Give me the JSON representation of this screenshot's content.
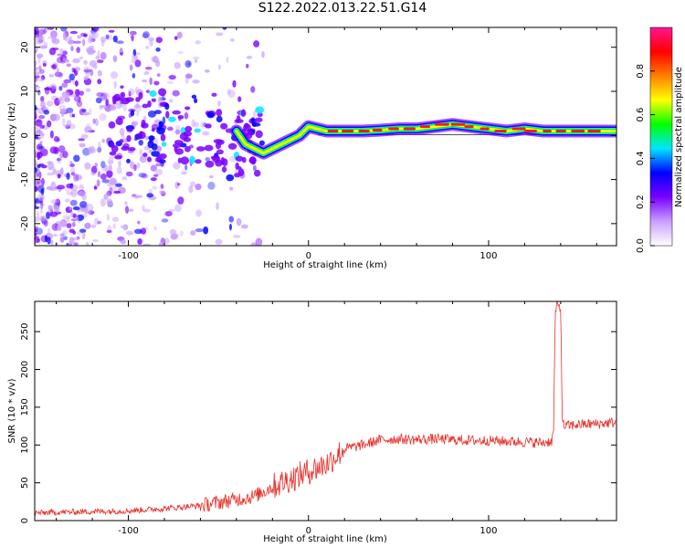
{
  "title": "S122.2022.013.22.51.G14",
  "chart_data": [
    {
      "type": "heatmap",
      "xlabel": "Height of straight line (km)",
      "ylabel": "Frequency (Hz)",
      "xlim": [
        -152,
        171
      ],
      "ylim": [
        -25,
        24.5
      ],
      "xticks": [
        -100,
        0,
        100
      ],
      "xtick_labels": [
        "-100",
        "0",
        "100"
      ],
      "yticks": [
        -20,
        -10,
        0,
        10,
        20
      ],
      "ytick_labels": [
        "-20",
        "-10",
        "0",
        "10",
        "20"
      ],
      "grid": false,
      "ridge": {
        "x": [
          -40,
          -35,
          -30,
          -25,
          -20,
          -15,
          -10,
          -5,
          0,
          5,
          10,
          20,
          30,
          40,
          50,
          60,
          70,
          80,
          90,
          100,
          110,
          120,
          130,
          140,
          150,
          160,
          171
        ],
        "y": [
          1,
          -2,
          -3,
          -4,
          -3,
          -2,
          -1,
          0,
          2,
          1.5,
          1,
          1,
          1,
          1.2,
          1.5,
          1.5,
          2,
          2.5,
          2,
          1.5,
          1,
          1.5,
          1,
          1,
          1,
          1,
          1
        ]
      },
      "colorbar": {
        "label": "Normalized spectral amplitude",
        "range": [
          0,
          1
        ],
        "ticks": [
          0.0,
          0.2,
          0.4,
          0.6,
          0.8
        ],
        "tick_labels": [
          "0.0",
          "0.2",
          "0.4",
          "0.6",
          "0.8"
        ],
        "colors": [
          "#ffffff",
          "#c9a0ff",
          "#7a00ff",
          "#0000ff",
          "#00e5ff",
          "#00ff00",
          "#ffff00",
          "#ff8000",
          "#ff0000",
          "#ff1493"
        ]
      }
    },
    {
      "type": "line",
      "xlabel": "Height of straight line (km)",
      "ylabel": "SNR (10 * v/v)",
      "xlim": [
        -152,
        171
      ],
      "ylim": [
        0,
        290
      ],
      "xticks": [
        -100,
        0,
        100
      ],
      "xtick_labels": [
        "-100",
        "0",
        "100"
      ],
      "yticks": [
        0,
        50,
        100,
        150,
        200,
        250
      ],
      "ytick_labels": [
        "0",
        "50",
        "100",
        "150",
        "200",
        "250"
      ],
      "grid": false,
      "series": [
        {
          "color": "#e8302a",
          "x": [
            -152,
            -140,
            -120,
            -100,
            -80,
            -60,
            -50,
            -40,
            -30,
            -20,
            -10,
            0,
            10,
            20,
            30,
            40,
            50,
            60,
            70,
            80,
            90,
            100,
            110,
            120,
            130,
            135,
            136,
            137,
            138,
            139,
            140,
            141,
            142,
            150,
            160,
            171
          ],
          "y": [
            10,
            11,
            12,
            13,
            16,
            20,
            24,
            28,
            32,
            45,
            55,
            65,
            75,
            95,
            100,
            107,
            108,
            107,
            108,
            107,
            106,
            106,
            105,
            104,
            103,
            105,
            115,
            275,
            285,
            283,
            280,
            128,
            125,
            127,
            128,
            130
          ]
        }
      ]
    }
  ]
}
